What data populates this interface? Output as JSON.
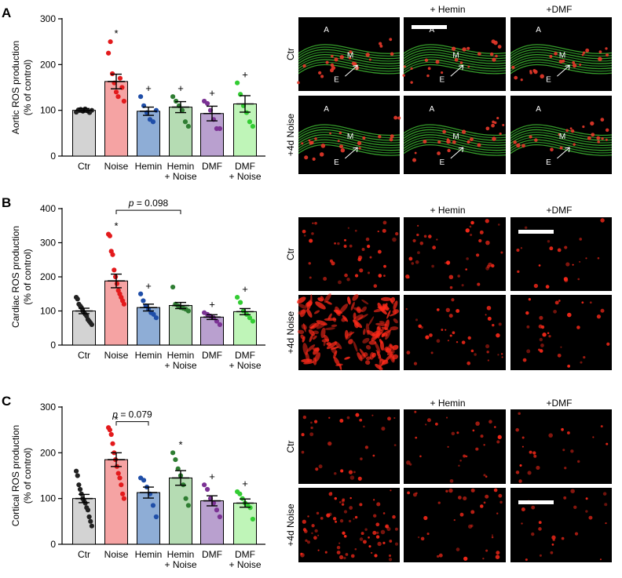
{
  "figure": {
    "image_labels": {
      "col_hemin": "+ Hemin",
      "col_dmf": "+DMF",
      "row_ctr": "Ctr",
      "row_noise": "+4d Noise",
      "aortic_region_labels": [
        "A",
        "M",
        "E"
      ]
    }
  },
  "chart_data": [
    {
      "panel": "A",
      "type": "bar",
      "ylabel": "Aortic ROS production",
      "ylabel2": "(% of control)",
      "ylim": [
        0,
        300
      ],
      "yticks": [
        "0",
        "100",
        "200",
        "300"
      ],
      "categories": [
        [
          "Ctr"
        ],
        [
          "Noise"
        ],
        [
          "Hemin"
        ],
        [
          "Hemin",
          "+ Noise"
        ],
        [
          "DMF"
        ],
        [
          "DMF",
          "+ Noise"
        ]
      ],
      "colors": [
        "#d3d3d3",
        "#f5a3a3",
        "#8eadd6",
        "#b5dcb3",
        "#b9a0cf",
        "#bff5b8"
      ],
      "dot_colors": [
        "#222222",
        "#e31a1c",
        "#1f4ea8",
        "#2e7d32",
        "#7b3294",
        "#33cc33"
      ],
      "values": [
        100,
        163,
        98,
        107,
        93,
        114
      ],
      "errors": [
        4,
        16,
        9,
        12,
        16,
        18
      ],
      "points": [
        [
          96,
          101,
          102,
          98,
          103,
          99,
          95,
          100
        ],
        [
          225,
          250,
          180,
          160,
          140,
          130,
          170,
          150,
          120
        ],
        [
          130,
          110,
          95,
          80,
          75,
          100
        ],
        [
          130,
          120,
          110,
          100,
          75,
          65
        ],
        [
          120,
          115,
          100,
          80,
          60,
          60
        ],
        [
          160,
          135,
          110,
          95,
          75,
          65
        ]
      ],
      "marks": [
        "",
        "*",
        "+",
        "+",
        "+",
        "+"
      ],
      "bracket": null
    },
    {
      "panel": "B",
      "type": "bar",
      "ylabel": "Cardiac ROS production",
      "ylabel2": "(% of control)",
      "ylim": [
        0,
        400
      ],
      "yticks": [
        "0",
        "100",
        "200",
        "300",
        "400"
      ],
      "categories": [
        [
          "Ctr"
        ],
        [
          "Noise"
        ],
        [
          "Hemin"
        ],
        [
          "Hemin",
          "+ Noise"
        ],
        [
          "DMF"
        ],
        [
          "DMF",
          "+ Noise"
        ]
      ],
      "colors": [
        "#d3d3d3",
        "#f5a3a3",
        "#8eadd6",
        "#b5dcb3",
        "#b9a0cf",
        "#bff5b8"
      ],
      "dot_colors": [
        "#222222",
        "#e31a1c",
        "#1f4ea8",
        "#2e7d32",
        "#7b3294",
        "#33cc33"
      ],
      "values": [
        100,
        188,
        110,
        116,
        82,
        98
      ],
      "errors": [
        8,
        20,
        10,
        9,
        7,
        9
      ],
      "points": [
        [
          140,
          135,
          120,
          115,
          110,
          100,
          95,
          90,
          85,
          75,
          70,
          65,
          60
        ],
        [
          325,
          320,
          275,
          265,
          220,
          200,
          180,
          160,
          150,
          140,
          130,
          120
        ],
        [
          150,
          130,
          115,
          105,
          95,
          90,
          80
        ],
        [
          170,
          120,
          115,
          110,
          108,
          105,
          100
        ],
        [
          95,
          90,
          85,
          80,
          70,
          60
        ],
        [
          140,
          125,
          100,
          90,
          80,
          70
        ]
      ],
      "marks": [
        "",
        "*",
        "+",
        "",
        "+",
        "+"
      ],
      "bracket": {
        "from": 1,
        "to": 3,
        "y": 395,
        "label_p": "p",
        "label_rest": " = 0.098"
      }
    },
    {
      "panel": "C",
      "type": "bar",
      "ylabel": "Cortical ROS production",
      "ylabel2": "(% of control)",
      "ylim": [
        0,
        300
      ],
      "yticks": [
        "0",
        "100",
        "200",
        "300"
      ],
      "categories": [
        [
          "Ctr"
        ],
        [
          "Noise"
        ],
        [
          "Hemin"
        ],
        [
          "Hemin",
          "+ Noise"
        ],
        [
          "DMF"
        ],
        [
          "DMF",
          "+ Noise"
        ]
      ],
      "colors": [
        "#d3d3d3",
        "#f5a3a3",
        "#8eadd6",
        "#b5dcb3",
        "#b9a0cf",
        "#bff5b8"
      ],
      "dot_colors": [
        "#222222",
        "#e31a1c",
        "#1f4ea8",
        "#2e7d32",
        "#7b3294",
        "#33cc33"
      ],
      "values": [
        100,
        185,
        113,
        145,
        95,
        90
      ],
      "errors": [
        9,
        15,
        12,
        16,
        11,
        9
      ],
      "points": [
        [
          160,
          150,
          130,
          120,
          110,
          100,
          95,
          90,
          80,
          75,
          60,
          50,
          40
        ],
        [
          255,
          250,
          240,
          220,
          200,
          185,
          170,
          155,
          145,
          130,
          110,
          100
        ],
        [
          145,
          140,
          125,
          110,
          85,
          60
        ],
        [
          200,
          185,
          165,
          150,
          130,
          100,
          85
        ],
        [
          130,
          120,
          100,
          90,
          75,
          60
        ],
        [
          115,
          110,
          100,
          90,
          85,
          80,
          55
        ]
      ],
      "marks": [
        "",
        "*",
        "",
        "*",
        "+",
        "+"
      ],
      "bracket": {
        "from": 1,
        "to": 2,
        "y": 268,
        "label_p": "p",
        "label_rest": " = 0.079"
      }
    }
  ]
}
